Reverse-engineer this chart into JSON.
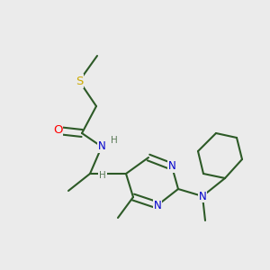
{
  "background_color": "#ebebeb",
  "bond_color": "#2d5a27",
  "bond_width": 1.5,
  "atom_colors": {
    "N": "#0000cc",
    "O": "#ff0000",
    "S": "#ccaa00",
    "C": "#2d5a27",
    "H": "#5a7a57"
  },
  "font_size": 8.5,
  "figsize": [
    3.0,
    3.0
  ],
  "dpi": 100
}
